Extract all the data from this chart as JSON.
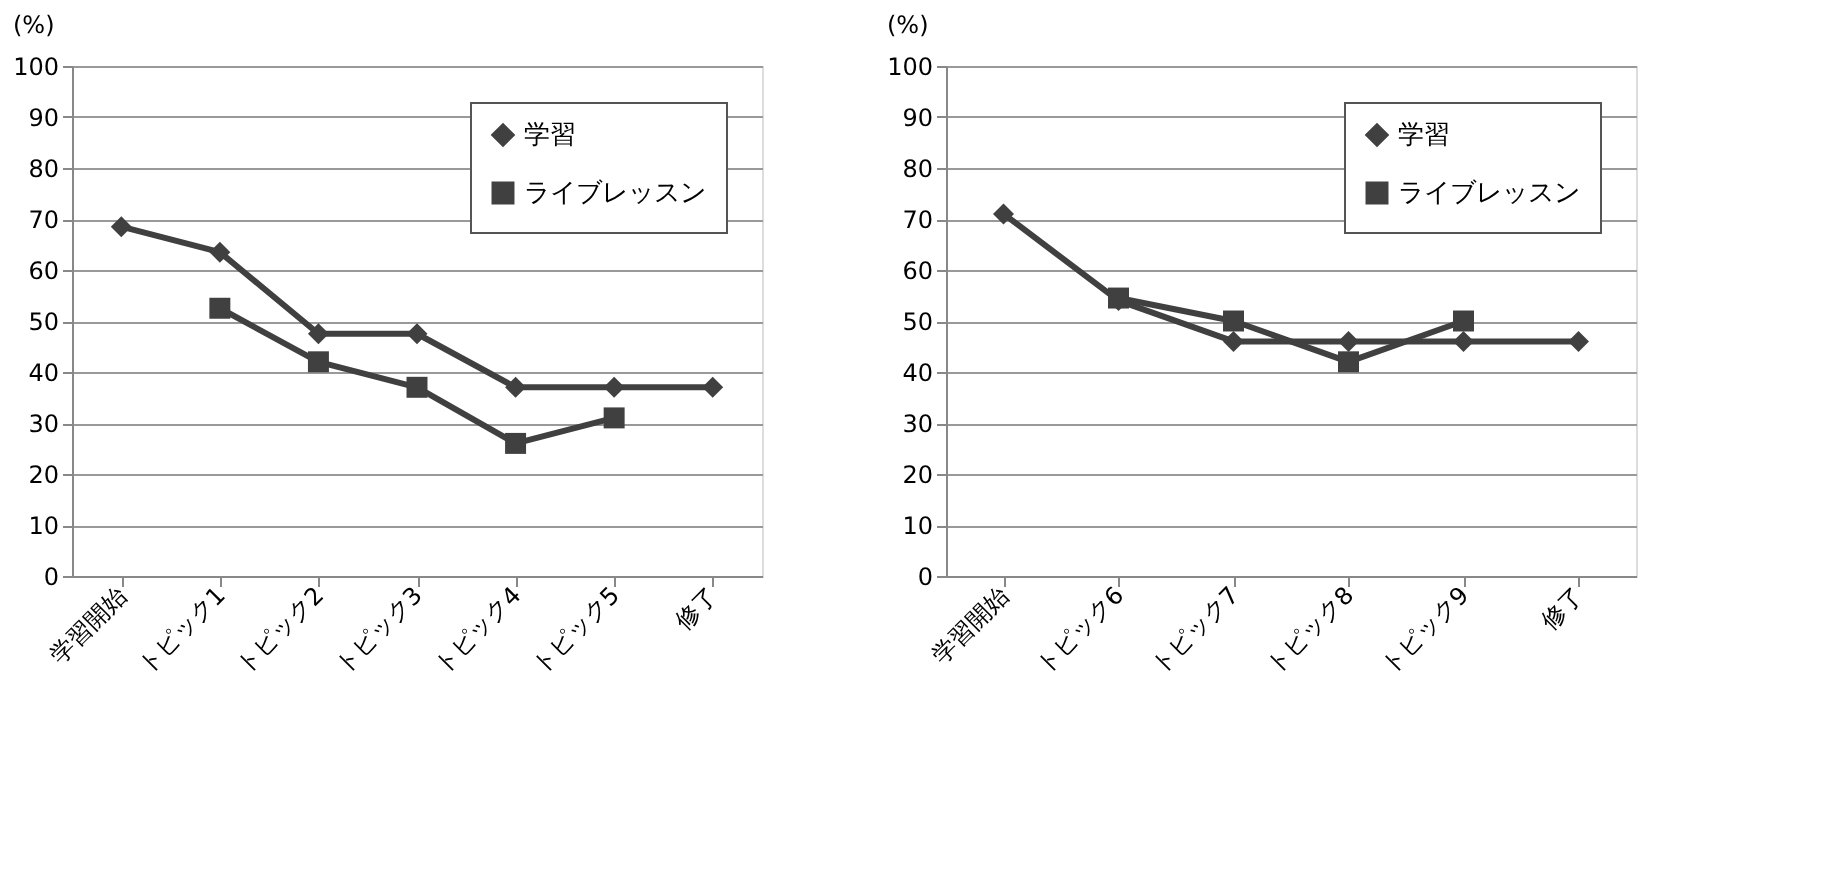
{
  "chart_data": [
    {
      "type": "line",
      "ylabel": "(%)",
      "categories": [
        "学習開始",
        "トピック1",
        "トピック2",
        "トピック3",
        "トピック4",
        "トピック5",
        "修了"
      ],
      "ylim": [
        0,
        100
      ],
      "yticks": [
        0,
        10,
        20,
        30,
        40,
        50,
        60,
        70,
        80,
        90,
        100
      ],
      "grid": "y",
      "legend": "top right",
      "line_style": "solid",
      "series": [
        {
          "name": "学習",
          "color": "#404040",
          "marker": "diamond",
          "values": [
            68.5,
            63.5,
            47.5,
            47.5,
            37,
            37,
            37
          ]
        },
        {
          "name": "ライブレッスン",
          "color": "#404040",
          "marker": "square",
          "values": [
            null,
            52.5,
            42,
            37,
            26,
            31,
            null
          ]
        }
      ]
    },
    {
      "type": "line",
      "ylabel": "(%)",
      "categories": [
        "学習開始",
        "トピック6",
        "トピック7",
        "トピック8",
        "トピック9",
        "修了"
      ],
      "ylim": [
        0,
        100
      ],
      "yticks": [
        0,
        10,
        20,
        30,
        40,
        50,
        60,
        70,
        80,
        90,
        100
      ],
      "grid": "y",
      "legend": "top right",
      "line_style": "solid",
      "series": [
        {
          "name": "学習",
          "color": "#404040",
          "marker": "diamond",
          "values": [
            71,
            54,
            46,
            46,
            46,
            46
          ]
        },
        {
          "name": "ライブレッスン",
          "color": "#404040",
          "marker": "square",
          "values": [
            null,
            54.5,
            50,
            42,
            50,
            null
          ]
        }
      ]
    }
  ]
}
